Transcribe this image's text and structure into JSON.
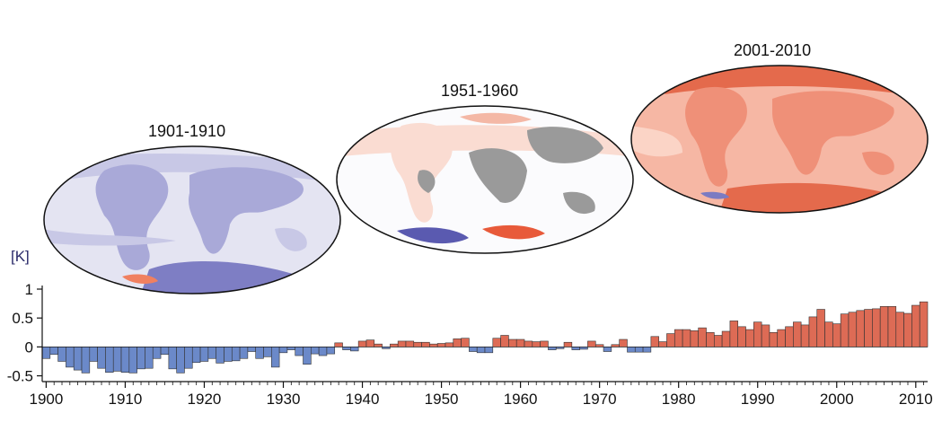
{
  "maps": [
    {
      "title": "1901-1910",
      "tone": "cool",
      "palette": {
        "ocean": "#e4e4f2",
        "light": "#c8c8e6",
        "mid": "#a9a9d8",
        "dark": "#7e7ec4",
        "warm": "#f08060"
      }
    },
    {
      "title": "1951-1960",
      "tone": "mixed",
      "palette": {
        "ocean": "#fbfbfd",
        "light": "#fadcd2",
        "mid": "#f4b8a6",
        "grey": "#9a9a9a",
        "cool": "#5a5ab0",
        "warm": "#e85a3a"
      }
    },
    {
      "title": "2001-2010",
      "tone": "warm",
      "palette": {
        "ocean": "#f6b7a4",
        "light": "#fbd4c6",
        "mid": "#ef9078",
        "dark": "#e46a4c",
        "cool": "#7b7bc2"
      }
    }
  ],
  "chart_data": {
    "type": "bar",
    "ylabel": "[K]",
    "ylim": [
      -0.6,
      1.0
    ],
    "xlim": [
      1899.5,
      2011.5
    ],
    "yticks": [
      1,
      0.5,
      0,
      -0.5
    ],
    "ytick_labels": [
      "1",
      "0.5",
      "0",
      "-0.5"
    ],
    "xticks": [
      1900,
      1910,
      1920,
      1930,
      1940,
      1950,
      1960,
      1970,
      1980,
      1990,
      2000,
      2010
    ],
    "colors": {
      "negative": "#6b89c9",
      "positive": "#dd6b55",
      "stroke": "#333333"
    },
    "x": [
      1900,
      1901,
      1902,
      1903,
      1904,
      1905,
      1906,
      1907,
      1908,
      1909,
      1910,
      1911,
      1912,
      1913,
      1914,
      1915,
      1916,
      1917,
      1918,
      1919,
      1920,
      1921,
      1922,
      1923,
      1924,
      1925,
      1926,
      1927,
      1928,
      1929,
      1930,
      1931,
      1932,
      1933,
      1934,
      1935,
      1936,
      1937,
      1938,
      1939,
      1940,
      1941,
      1942,
      1943,
      1944,
      1945,
      1946,
      1947,
      1948,
      1949,
      1950,
      1951,
      1952,
      1953,
      1954,
      1955,
      1956,
      1957,
      1958,
      1959,
      1960,
      1961,
      1962,
      1963,
      1964,
      1965,
      1966,
      1967,
      1968,
      1969,
      1970,
      1971,
      1972,
      1973,
      1974,
      1975,
      1976,
      1977,
      1978,
      1979,
      1980,
      1981,
      1982,
      1983,
      1984,
      1985,
      1986,
      1987,
      1988,
      1989,
      1990,
      1991,
      1992,
      1993,
      1994,
      1995,
      1996,
      1997,
      1998,
      1999,
      2000,
      2001,
      2002,
      2003,
      2004,
      2005,
      2006,
      2007,
      2008,
      2009,
      2010,
      2011
    ],
    "values": [
      -0.2,
      -0.13,
      -0.25,
      -0.35,
      -0.4,
      -0.45,
      -0.25,
      -0.37,
      -0.44,
      -0.42,
      -0.44,
      -0.45,
      -0.38,
      -0.37,
      -0.2,
      -0.13,
      -0.38,
      -0.45,
      -0.37,
      -0.27,
      -0.25,
      -0.2,
      -0.28,
      -0.25,
      -0.24,
      -0.2,
      -0.08,
      -0.2,
      -0.17,
      -0.35,
      -0.1,
      -0.05,
      -0.15,
      -0.3,
      -0.12,
      -0.15,
      -0.12,
      0.07,
      -0.05,
      -0.07,
      0.1,
      0.12,
      0.05,
      -0.03,
      0.05,
      0.1,
      0.1,
      0.08,
      0.08,
      0.05,
      0.06,
      0.07,
      0.14,
      0.15,
      -0.08,
      -0.1,
      -0.1,
      0.15,
      0.2,
      0.13,
      0.13,
      0.1,
      0.09,
      0.1,
      -0.05,
      -0.03,
      0.08,
      -0.05,
      -0.04,
      0.1,
      0.04,
      -0.08,
      0.04,
      0.13,
      -0.09,
      -0.09,
      -0.09,
      0.18,
      0.09,
      0.23,
      0.3,
      0.3,
      0.28,
      0.33,
      0.25,
      0.2,
      0.27,
      0.45,
      0.35,
      0.3,
      0.43,
      0.38,
      0.25,
      0.3,
      0.35,
      0.43,
      0.38,
      0.52,
      0.65,
      0.43,
      0.4,
      0.57,
      0.6,
      0.63,
      0.65,
      0.66,
      0.7,
      0.7,
      0.6,
      0.58,
      0.72,
      0.78
    ]
  }
}
